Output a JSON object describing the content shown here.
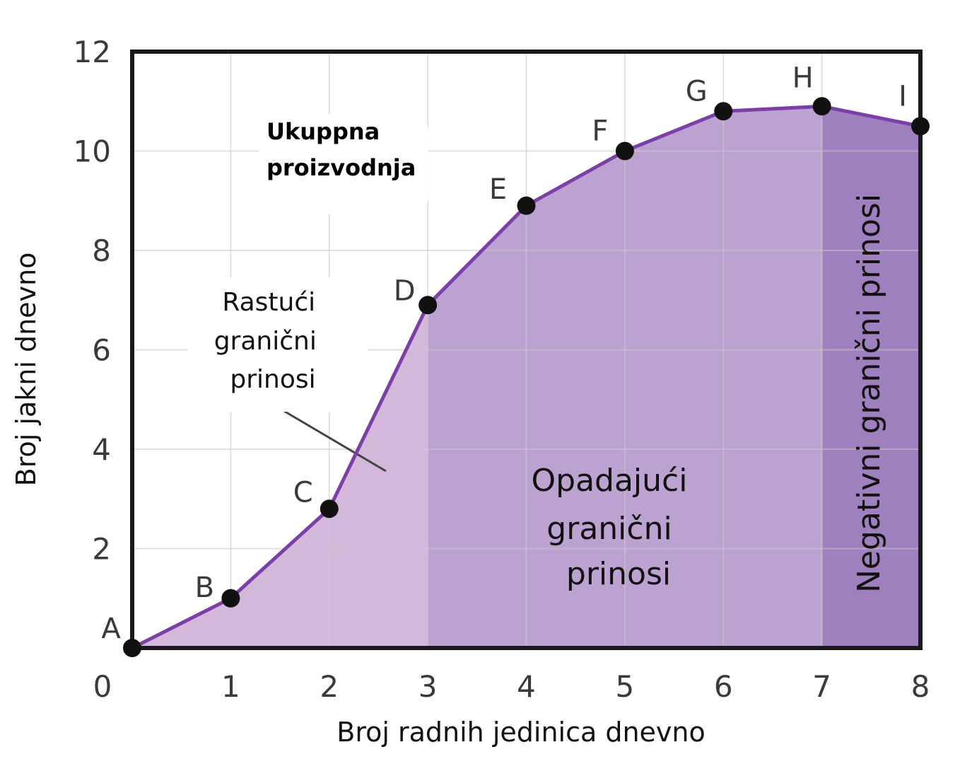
{
  "chart_data": {
    "type": "line",
    "title": "",
    "xlabel": "Broj radnih jedinica dnevno",
    "ylabel": "Broj jakni dnevno",
    "xlim": [
      0,
      8
    ],
    "ylim": [
      0,
      12
    ],
    "x_ticks": [
      "0",
      "1",
      "2",
      "3",
      "4",
      "5",
      "6",
      "7",
      "8"
    ],
    "y_ticks": [
      "2",
      "4",
      "6",
      "8",
      "10",
      "12"
    ],
    "grid": true,
    "series": [
      {
        "name": "Ukupna proizvodnja",
        "points": [
          {
            "label": "A",
            "x": 0,
            "y": 0
          },
          {
            "label": "B",
            "x": 1,
            "y": 1
          },
          {
            "label": "C",
            "x": 2,
            "y": 2.8
          },
          {
            "label": "D",
            "x": 3,
            "y": 6.9
          },
          {
            "label": "E",
            "x": 4,
            "y": 8.9
          },
          {
            "label": "F",
            "x": 5,
            "y": 10
          },
          {
            "label": "G",
            "x": 6,
            "y": 10.8
          },
          {
            "label": "H",
            "x": 7,
            "y": 10.9
          },
          {
            "label": "I",
            "x": 8,
            "y": 10.5
          }
        ]
      }
    ],
    "regions": [
      {
        "from": 0,
        "to": 3,
        "color": "#d4b8dc",
        "lines": [
          "Rastući",
          "granični",
          "prinosi"
        ]
      },
      {
        "from": 3,
        "to": 7,
        "color": "#bca2d0",
        "lines": [
          "Opadajući",
          "granični",
          "prinosi"
        ]
      },
      {
        "from": 7,
        "to": 8,
        "color": "#9d80bd",
        "lines": [
          "Negativni granični prinosi"
        ]
      }
    ],
    "curve_label": [
      "Ukuppna",
      "proizvodnja"
    ],
    "colors": {
      "line": "#7b3fa6",
      "point": "#111111",
      "grid": "#c8c8c8",
      "frame": "#1a1a1a"
    }
  }
}
